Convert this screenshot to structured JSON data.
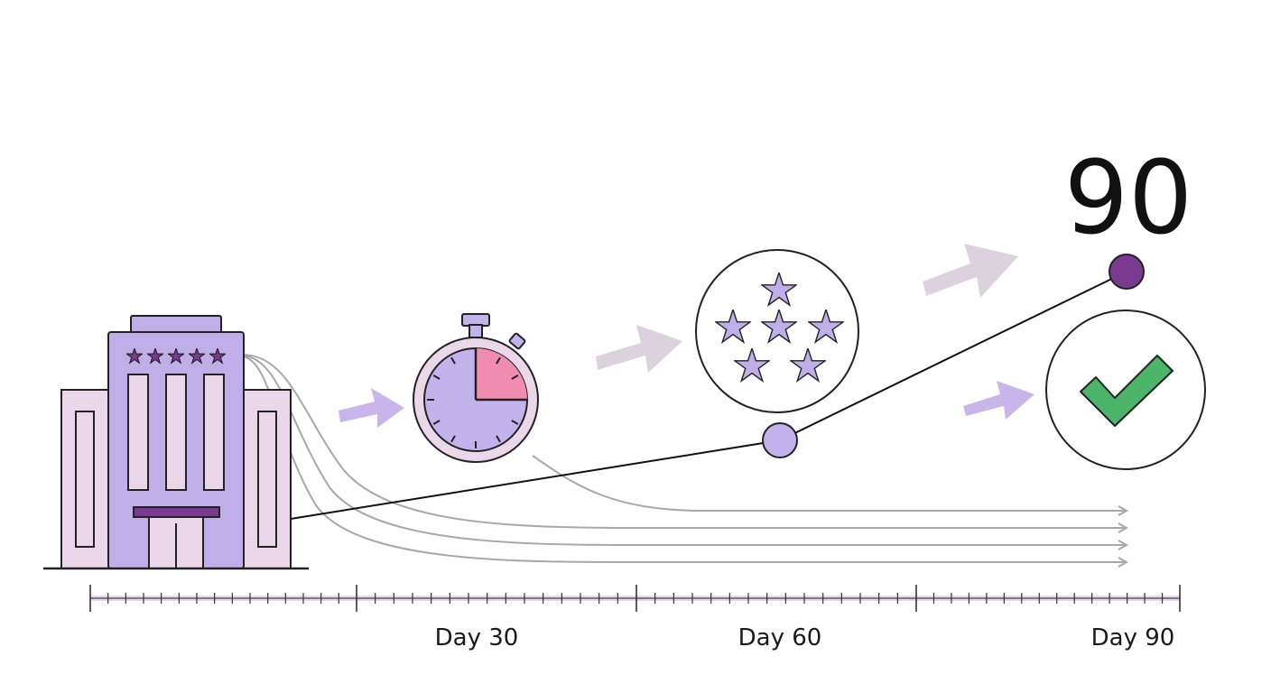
{
  "headline": {
    "value": "90"
  },
  "timeline": {
    "labels": [
      {
        "key": "day30",
        "text": "Day 30"
      },
      {
        "key": "day60",
        "text": "Day 60"
      },
      {
        "key": "day90",
        "text": "Day 90"
      }
    ]
  },
  "icons": {
    "hotel": "hotel-building-icon",
    "hotel_rating": "five-star-rating-icon",
    "timer": "stopwatch-icon",
    "reviews": "stars-circle-icon",
    "success": "checkmark-circle-icon"
  },
  "colors": {
    "lavender": "#bfaee8",
    "lavender_light": "#e9d8ec",
    "purple_dark": "#7a3a92",
    "pink_segment": "#f08cb0",
    "check_green": "#4cb56a",
    "flow_gray": "#a8a8a8",
    "ruler_tint": "#e6d6ee"
  }
}
